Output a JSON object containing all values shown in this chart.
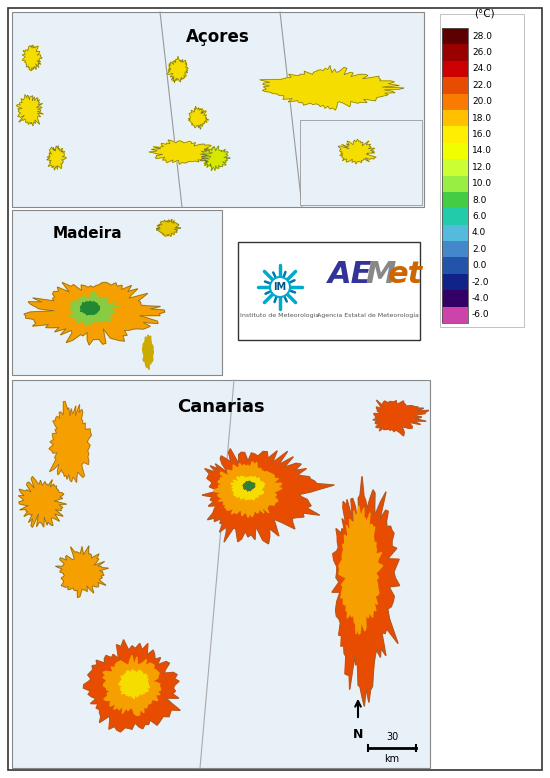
{
  "background_color": "#ffffff",
  "border_color": "#333333",
  "colorbar_title": "(°C)",
  "colorbar_ticks": [
    28.0,
    26.0,
    24.0,
    22.0,
    20.0,
    18.0,
    16.0,
    14.0,
    12.0,
    10.0,
    8.0,
    6.0,
    4.0,
    2.0,
    0.0,
    -2.0,
    -4.0,
    -6.0
  ],
  "colorbar_colors": [
    "#5e0000",
    "#9b0000",
    "#cc0000",
    "#e84c00",
    "#f97c00",
    "#ffc000",
    "#ffee00",
    "#f0ff00",
    "#ccff33",
    "#99ee44",
    "#44cc44",
    "#22ccaa",
    "#55bbdd",
    "#4488cc",
    "#2255aa",
    "#112288",
    "#330066",
    "#cc44aa"
  ],
  "section_labels": [
    "Açores",
    "Madeira",
    "Canarias"
  ],
  "island_yellow": "#f5dd00",
  "island_orange": "#f5a000",
  "island_red": "#e84c00",
  "scale_bar_label": "30",
  "scale_bar_unit": "km",
  "north_label": "N"
}
